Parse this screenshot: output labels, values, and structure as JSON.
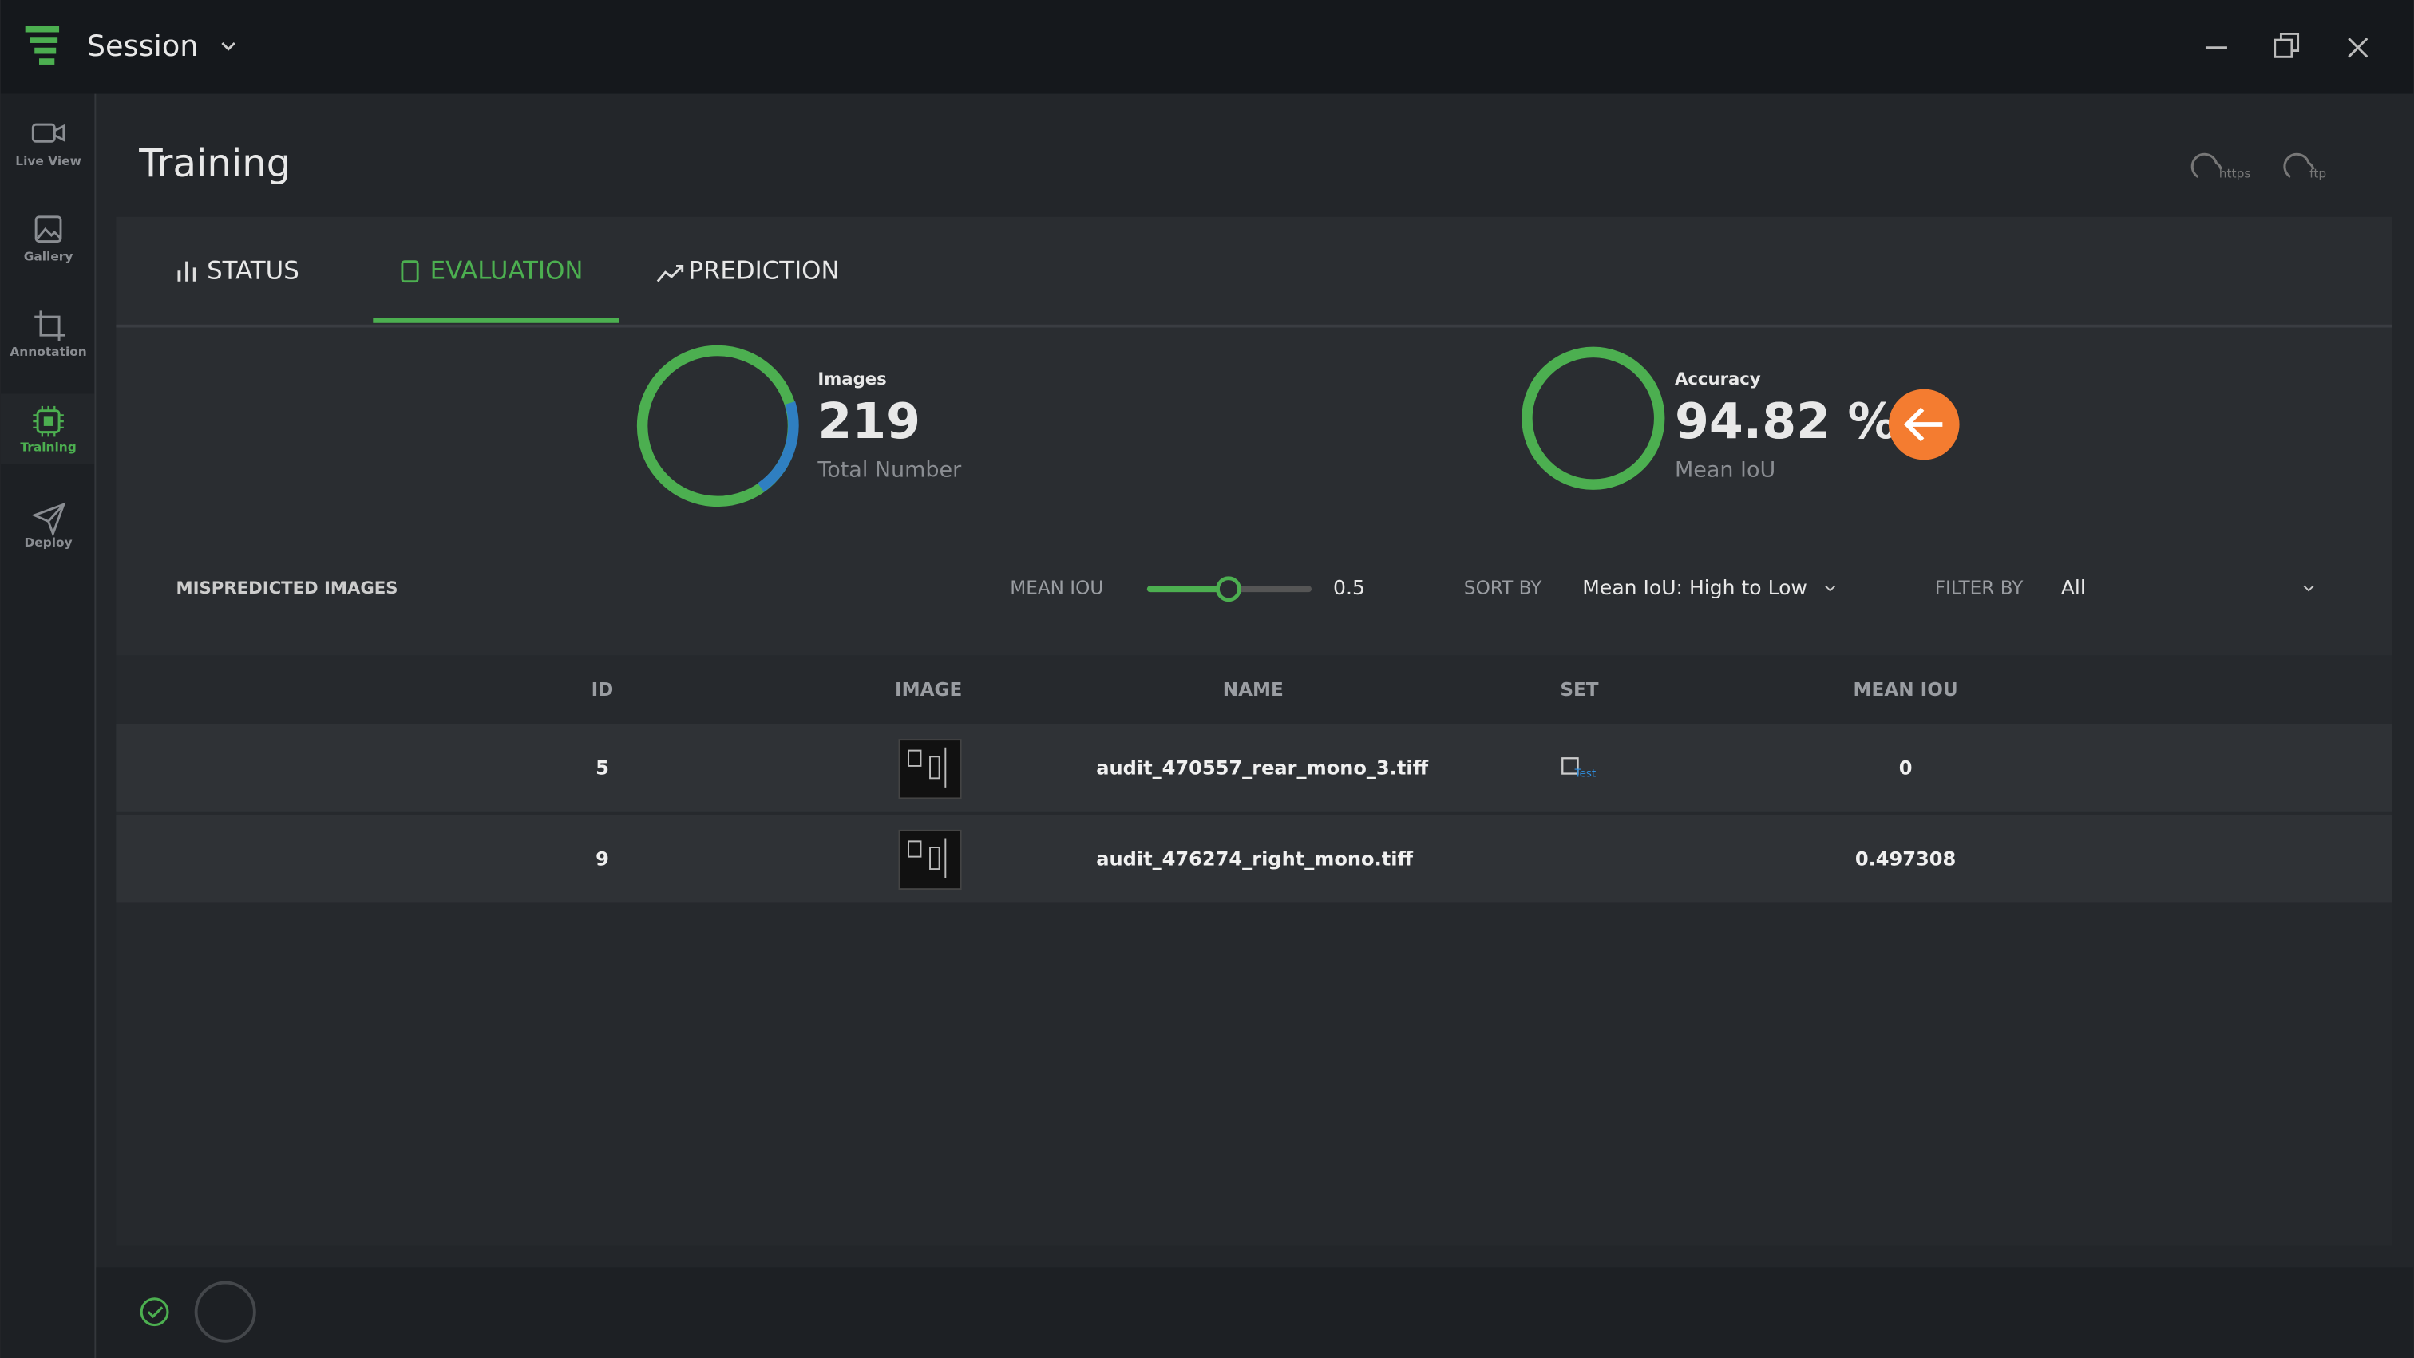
{
  "header": {
    "title": "Session"
  },
  "nav": [
    {
      "label": "Live View"
    },
    {
      "label": "Gallery"
    },
    {
      "label": "Annotation"
    },
    {
      "label": "Training"
    },
    {
      "label": "Deploy"
    }
  ],
  "page": {
    "title": "Training",
    "upload": [
      "https",
      "ftp"
    ]
  },
  "tabs": [
    "STATUS",
    "EVALUATION",
    "PREDICTION"
  ],
  "stats": [
    {
      "title": "Images",
      "value": "219",
      "caption": "Total Number"
    },
    {
      "title": "Accuracy",
      "value": "94.82 %",
      "caption": "Mean IoU"
    }
  ],
  "filters": {
    "title": "MISPREDICTED IMAGES",
    "mean_iou_label": "MEAN IOU",
    "mean_iou_value": "0.5",
    "sort_label": "SORT BY",
    "sort_value": "Mean IoU: High to Low",
    "filter_label": "FILTER BY",
    "filter_value": "All"
  },
  "table": {
    "columns": [
      "ID",
      "IMAGE",
      "NAME",
      "SET",
      "MEAN IOU"
    ],
    "rows": [
      {
        "id": 5,
        "name": "audit_470557_rear_mono_3.tiff",
        "set": "Test",
        "mean_iou": 0
      },
      {
        "id": 9,
        "name": "audit_476274_right_mono.tiff",
        "mean_iou": 0.497308
      }
    ]
  }
}
